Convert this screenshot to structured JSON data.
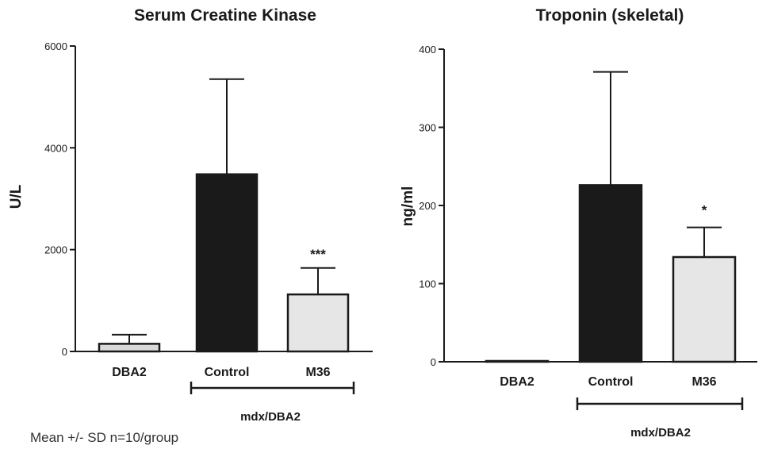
{
  "footnote": "Mean +/- SD  n=10/group",
  "colors": {
    "DBA2": "#d9d9d9",
    "Control": "#1a1a1a",
    "M36": "#e6e6e6",
    "axis": "#1a1a1a"
  },
  "chart_data": [
    {
      "type": "bar",
      "title": "Serum Creatine Kinase",
      "ylabel": "U/L",
      "xlabel": "",
      "ylim": [
        0,
        6000
      ],
      "yticks": [
        0,
        2000,
        4000,
        6000
      ],
      "categories": [
        "DBA2",
        "Control",
        "M36"
      ],
      "values": [
        150,
        3480,
        1120
      ],
      "errors": [
        180,
        1870,
        520
      ],
      "annotations": [
        "",
        "",
        "***"
      ],
      "group_label": "mdx/DBA2",
      "group_categories": [
        "Control",
        "M36"
      ]
    },
    {
      "type": "bar",
      "title": "Troponin (skeletal)",
      "ylabel": "ng/ml",
      "xlabel": "",
      "ylim": [
        0,
        400
      ],
      "yticks": [
        0,
        100,
        200,
        300,
        400
      ],
      "categories": [
        "DBA2",
        "Control",
        "M36"
      ],
      "values": [
        1,
        226,
        134
      ],
      "errors": [
        0,
        145,
        38
      ],
      "annotations": [
        "",
        "",
        "*"
      ],
      "group_label": "mdx/DBA2",
      "group_categories": [
        "Control",
        "M36"
      ]
    }
  ]
}
